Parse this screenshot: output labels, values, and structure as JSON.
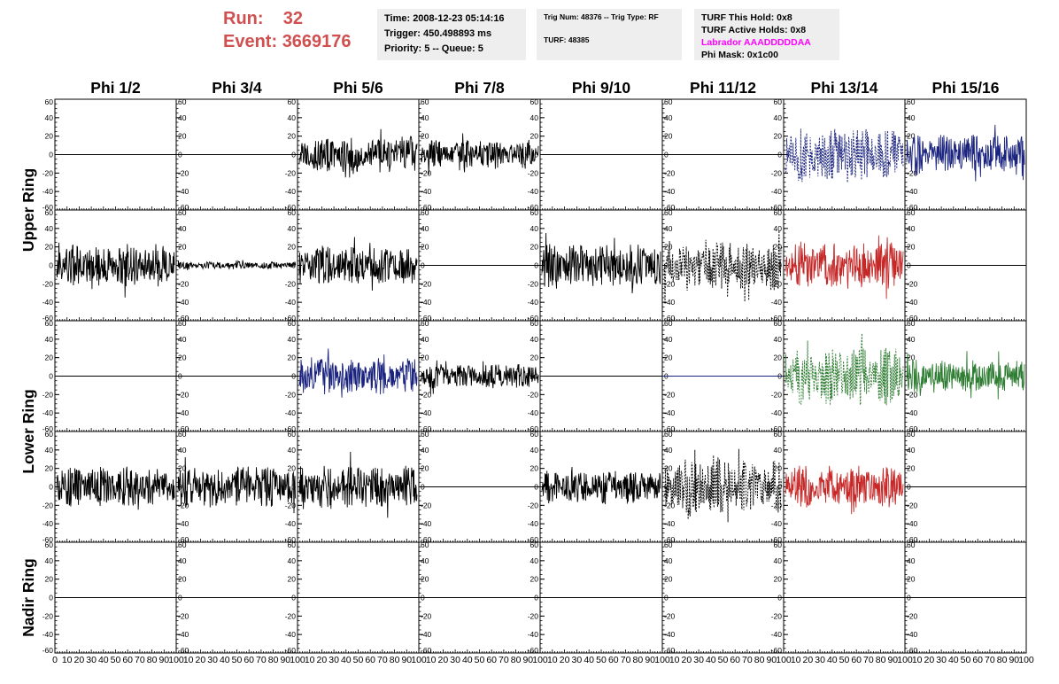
{
  "header": {
    "run_label": "Run:",
    "run_value": "32",
    "event_label": "Event:",
    "event_value": "3669176",
    "color": "#d05050"
  },
  "time_box": {
    "time": "Time: 2008-12-23 05:14:16",
    "trigger": "Trigger: 450.498893 ms",
    "priority": "Priority: 5 -- Queue: 5"
  },
  "trig_box": {
    "trig": "Trig Num: 48376 -- Trig Type: RF",
    "turf": "TURF: 48385"
  },
  "turf_box": {
    "this_hold": "TURF This Hold: 0x8",
    "active_holds": "TURF Active Holds: 0x8",
    "labrador": "Labrador AAADDDDDAA",
    "labrador_color": "#ff00ff",
    "phi_mask": "Phi Mask: 0x1c00"
  },
  "phi_labels": [
    "Phi 1/2",
    "Phi 3/4",
    "Phi 5/6",
    "Phi 7/8",
    "Phi 9/10",
    "Phi 11/12",
    "Phi 13/14",
    "Phi 15/16"
  ],
  "ring_labels": [
    "Upper Ring",
    "Lower Ring",
    "Nadir Ring"
  ],
  "y_ticks": [
    "60",
    "40",
    "20",
    "0",
    "-20",
    "-40",
    "-60"
  ],
  "x_ticks": [
    "0",
    "10",
    "20",
    "30",
    "40",
    "50",
    "60",
    "70",
    "80",
    "90",
    "100"
  ],
  "chart_data": {
    "type": "line",
    "xlim": [
      0,
      100
    ],
    "ylim": [
      -60,
      60
    ],
    "panels": [
      {
        "row": 0,
        "col": 0,
        "color": "#000000",
        "style": "flat",
        "amplitude": 0
      },
      {
        "row": 0,
        "col": 1,
        "color": "#000000",
        "style": "flat",
        "amplitude": 0
      },
      {
        "row": 0,
        "col": 2,
        "color": "#000000",
        "style": "solid",
        "amplitude": 20
      },
      {
        "row": 0,
        "col": 3,
        "color": "#000000",
        "style": "solid",
        "amplitude": 16
      },
      {
        "row": 0,
        "col": 4,
        "color": "#000000",
        "style": "flat",
        "amplitude": 0
      },
      {
        "row": 0,
        "col": 5,
        "color": "#000000",
        "style": "flat",
        "amplitude": 0
      },
      {
        "row": 0,
        "col": 6,
        "color": "#1a237e",
        "style": "dashed",
        "amplitude": 30
      },
      {
        "row": 0,
        "col": 7,
        "color": "#1a237e",
        "style": "solid",
        "amplitude": 22
      },
      {
        "row": 1,
        "col": 0,
        "color": "#000000",
        "style": "solid",
        "amplitude": 24
      },
      {
        "row": 1,
        "col": 1,
        "color": "#000000",
        "style": "solid",
        "amplitude": 4
      },
      {
        "row": 1,
        "col": 2,
        "color": "#000000",
        "style": "solid",
        "amplitude": 22
      },
      {
        "row": 1,
        "col": 3,
        "color": "#000000",
        "style": "flat",
        "amplitude": 0
      },
      {
        "row": 1,
        "col": 4,
        "color": "#000000",
        "style": "solid",
        "amplitude": 24
      },
      {
        "row": 1,
        "col": 5,
        "color": "#000000",
        "style": "dashed",
        "amplitude": 28
      },
      {
        "row": 1,
        "col": 6,
        "color": "#c62828",
        "style": "solid",
        "amplitude": 26
      },
      {
        "row": 1,
        "col": 7,
        "color": "#000000",
        "style": "flat",
        "amplitude": 0
      },
      {
        "row": 2,
        "col": 0,
        "color": "#000000",
        "style": "flat",
        "amplitude": 0
      },
      {
        "row": 2,
        "col": 1,
        "color": "#000000",
        "style": "flat",
        "amplitude": 0
      },
      {
        "row": 2,
        "col": 2,
        "color": "#1a237e",
        "style": "solid",
        "amplitude": 20
      },
      {
        "row": 2,
        "col": 3,
        "color": "#000000",
        "style": "solid",
        "amplitude": 14
      },
      {
        "row": 2,
        "col": 4,
        "color": "#000000",
        "style": "flat",
        "amplitude": 0
      },
      {
        "row": 2,
        "col": 5,
        "color": "#1a237e",
        "style": "flat",
        "amplitude": 0
      },
      {
        "row": 2,
        "col": 6,
        "color": "#2e7d32",
        "style": "dashed",
        "amplitude": 32
      },
      {
        "row": 2,
        "col": 7,
        "color": "#2e7d32",
        "style": "solid",
        "amplitude": 18
      },
      {
        "row": 3,
        "col": 0,
        "color": "#000000",
        "style": "solid",
        "amplitude": 22
      },
      {
        "row": 3,
        "col": 1,
        "color": "#000000",
        "style": "solid",
        "amplitude": 22
      },
      {
        "row": 3,
        "col": 2,
        "color": "#000000",
        "style": "solid",
        "amplitude": 24
      },
      {
        "row": 3,
        "col": 3,
        "color": "#000000",
        "style": "flat",
        "amplitude": 0
      },
      {
        "row": 3,
        "col": 4,
        "color": "#000000",
        "style": "solid",
        "amplitude": 18
      },
      {
        "row": 3,
        "col": 5,
        "color": "#000000",
        "style": "dashed",
        "amplitude": 32
      },
      {
        "row": 3,
        "col": 6,
        "color": "#c62828",
        "style": "solid",
        "amplitude": 24
      },
      {
        "row": 3,
        "col": 7,
        "color": "#000000",
        "style": "flat",
        "amplitude": 0
      },
      {
        "row": 4,
        "col": 0,
        "color": "#000000",
        "style": "flat",
        "amplitude": 0
      },
      {
        "row": 4,
        "col": 1,
        "color": "#000000",
        "style": "flat",
        "amplitude": 0
      },
      {
        "row": 4,
        "col": 2,
        "color": "#000000",
        "style": "flat",
        "amplitude": 0
      },
      {
        "row": 4,
        "col": 3,
        "color": "#000000",
        "style": "flat",
        "amplitude": 0
      },
      {
        "row": 4,
        "col": 4,
        "color": "#000000",
        "style": "flat",
        "amplitude": 0
      },
      {
        "row": 4,
        "col": 5,
        "color": "#000000",
        "style": "flat",
        "amplitude": 0
      },
      {
        "row": 4,
        "col": 6,
        "color": "#000000",
        "style": "flat",
        "amplitude": 0
      },
      {
        "row": 4,
        "col": 7,
        "color": "#000000",
        "style": "flat",
        "amplitude": 0
      }
    ]
  }
}
